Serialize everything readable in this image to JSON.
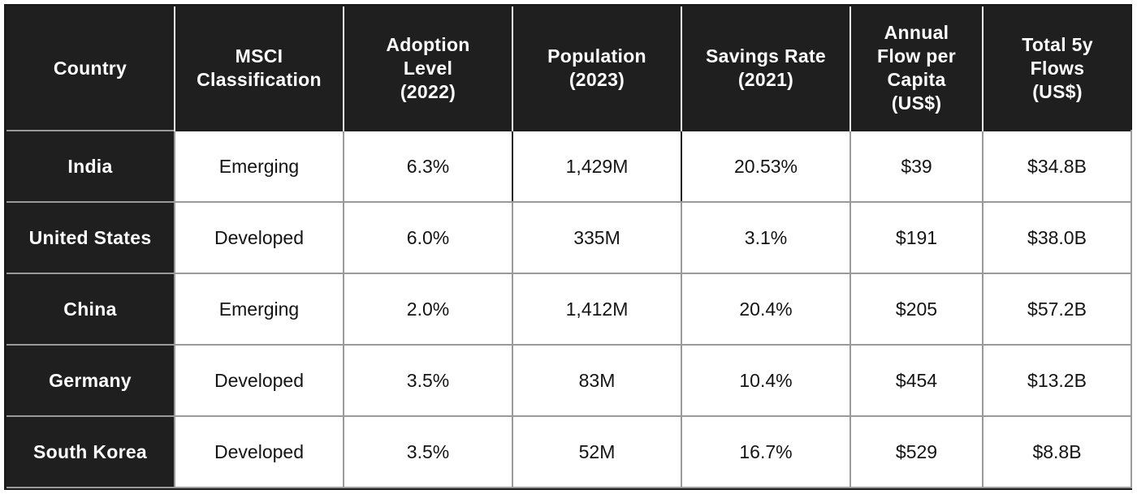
{
  "table": {
    "headers": [
      [
        "Country"
      ],
      [
        "MSCI",
        "Classification"
      ],
      [
        "Adoption",
        "Level",
        "(2022)"
      ],
      [
        "Population",
        "(2023)"
      ],
      [
        "Savings Rate",
        "(2021)"
      ],
      [
        "Annual",
        "Flow per",
        "Capita",
        "(US$)"
      ],
      [
        "Total 5y",
        "Flows",
        "(US$)"
      ]
    ],
    "rows": [
      {
        "country": "India",
        "cells": [
          "Emerging",
          "6.3%",
          "1,429M",
          "20.53%",
          "$39",
          "$34.8B"
        ]
      },
      {
        "country": "United States",
        "cells": [
          "Developed",
          "6.0%",
          "335M",
          "3.1%",
          "$191",
          "$38.0B"
        ]
      },
      {
        "country": "China",
        "cells": [
          "Emerging",
          "2.0%",
          "1,412M",
          "20.4%",
          "$205",
          "$57.2B"
        ]
      },
      {
        "country": "Germany",
        "cells": [
          "Developed",
          "3.5%",
          "83M",
          "10.4%",
          "$454",
          "$13.2B"
        ]
      },
      {
        "country": "South Korea",
        "cells": [
          "Developed",
          "3.5%",
          "52M",
          "16.7%",
          "$529",
          "$8.8B"
        ]
      }
    ]
  },
  "colors": {
    "header_background": "#1f1f1f",
    "header_text": "#ffffff",
    "cell_background": "#ffffff",
    "cell_text": "#141414",
    "grid_line": "#9a9a9a"
  }
}
